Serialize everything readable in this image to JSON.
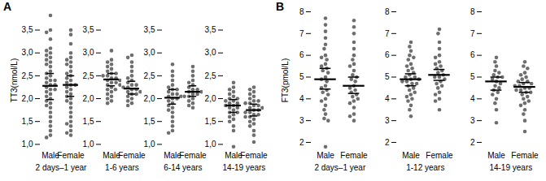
{
  "chart_data": [
    {
      "type": "scatter",
      "title": "A",
      "y_label": "TT3(nmol/L)",
      "marker": "circle",
      "color": "#6e6e6e",
      "categories": [
        "Male",
        "Female",
        "Male",
        "Female",
        "Male",
        "Female",
        "Male",
        "Female"
      ],
      "groups": [
        "2 days–1 year",
        "1-6 years",
        "6-14 years",
        "14-19 years"
      ],
      "ylim": [
        0.9,
        3.9
      ],
      "yticks": [
        {
          "value": 1,
          "label": "1,0"
        },
        {
          "value": 1.5,
          "label": "1,5"
        },
        {
          "value": 2,
          "label": "2,0"
        },
        {
          "value": 2.5,
          "label": "2,5"
        },
        {
          "value": 3,
          "label": "3,0"
        },
        {
          "value": 3.5,
          "label": "3,5"
        }
      ],
      "values": [
        [
          3.82,
          3.5,
          3.45,
          3.3,
          3.1,
          3.05,
          3.0,
          2.95,
          2.9,
          2.85,
          2.8,
          2.75,
          2.7,
          2.6,
          2.55,
          2.5,
          2.45,
          2.4,
          2.4,
          2.35,
          2.3,
          2.3,
          2.25,
          2.2,
          2.2,
          2.15,
          2.1,
          2.05,
          2.0,
          1.95,
          1.9,
          1.85,
          1.8,
          1.7,
          1.6,
          1.5,
          1.4,
          1.3,
          1.2,
          1.15
        ],
        [
          3.5,
          3.4,
          3.2,
          3.0,
          2.9,
          2.85,
          2.8,
          2.75,
          2.7,
          2.6,
          2.55,
          2.5,
          2.45,
          2.4,
          2.35,
          2.3,
          2.3,
          2.25,
          2.2,
          2.15,
          2.1,
          2.05,
          2.0,
          1.95,
          1.9,
          1.8,
          1.7,
          1.6,
          1.5,
          1.45,
          1.4,
          1.3,
          1.25,
          1.2
        ],
        [
          3.05,
          2.85,
          2.8,
          2.75,
          2.7,
          2.65,
          2.6,
          2.55,
          2.55,
          2.5,
          2.5,
          2.45,
          2.45,
          2.4,
          2.4,
          2.35,
          2.35,
          2.3,
          2.3,
          2.25,
          2.2,
          2.2,
          2.15,
          2.1,
          2.05,
          2.0,
          1.95,
          1.9
        ],
        [
          2.95,
          2.9,
          2.8,
          2.7,
          2.6,
          2.5,
          2.45,
          2.4,
          2.35,
          2.3,
          2.3,
          2.25,
          2.25,
          2.2,
          2.2,
          2.15,
          2.15,
          2.1,
          2.1,
          2.05,
          2.0,
          1.95,
          1.9,
          1.85
        ],
        [
          2.75,
          2.6,
          2.5,
          2.4,
          2.3,
          2.25,
          2.2,
          2.2,
          2.15,
          2.1,
          2.1,
          2.05,
          2.05,
          2.0,
          2.0,
          1.95,
          1.9,
          1.85,
          1.8,
          1.75,
          1.7,
          1.6,
          1.5,
          1.4,
          1.3,
          1.25
        ],
        [
          2.7,
          2.6,
          2.5,
          2.4,
          2.35,
          2.3,
          2.25,
          2.2,
          2.2,
          2.15,
          2.15,
          2.1,
          2.1,
          2.05,
          2.05,
          2.0,
          1.95,
          1.9,
          1.85,
          1.8
        ],
        [
          2.35,
          2.25,
          2.2,
          2.15,
          2.1,
          2.05,
          2.0,
          2.0,
          1.95,
          1.95,
          1.9,
          1.9,
          1.85,
          1.85,
          1.8,
          1.8,
          1.75,
          1.7,
          1.7,
          1.65,
          1.6,
          1.55,
          1.5,
          1.4,
          1.3,
          0.95
        ],
        [
          2.25,
          2.2,
          2.15,
          2.1,
          2.05,
          2.0,
          1.95,
          1.95,
          1.9,
          1.9,
          1.85,
          1.85,
          1.8,
          1.8,
          1.75,
          1.75,
          1.7,
          1.7,
          1.65,
          1.65,
          1.6,
          1.6,
          1.55,
          1.5,
          1.45,
          1.4,
          1.3,
          1.2,
          1.05
        ]
      ],
      "mean": [
        2.28,
        2.3,
        2.42,
        2.22,
        2.02,
        2.15,
        1.85,
        1.75
      ],
      "error_low": [
        1.98,
        2.05,
        2.28,
        2.1,
        1.88,
        2.05,
        1.7,
        1.62
      ],
      "error_high": [
        2.55,
        2.5,
        2.55,
        2.38,
        2.2,
        2.28,
        1.98,
        1.88
      ]
    },
    {
      "type": "scatter",
      "title": "B",
      "y_label": "FT3(pmol/L)",
      "marker": "circle",
      "color": "#6e6e6e",
      "categories": [
        "Male",
        "Female",
        "Male",
        "Female",
        "Male",
        "Female"
      ],
      "groups": [
        "2 days–1 year",
        "1-12 years",
        "14-19 years"
      ],
      "ylim": [
        1.7,
        8
      ],
      "yticks": [
        2,
        3,
        4,
        5,
        6,
        7,
        8
      ],
      "values": [
        [
          7.7,
          7.4,
          7.1,
          6.8,
          6.5,
          6.3,
          6.0,
          5.9,
          5.8,
          5.6,
          5.5,
          5.4,
          5.3,
          5.2,
          5.0,
          4.9,
          4.8,
          4.6,
          4.5,
          4.4,
          4.3,
          4.2,
          4.0,
          3.9,
          3.7,
          3.5,
          3.3,
          3.1,
          3.0,
          1.8
        ],
        [
          7.6,
          7.3,
          7.0,
          6.6,
          6.3,
          6.0,
          5.8,
          5.6,
          5.5,
          5.3,
          5.1,
          5.0,
          4.9,
          4.8,
          4.6,
          4.5,
          4.4,
          4.3,
          4.2,
          4.1,
          4.0,
          3.9,
          3.8,
          3.6,
          3.3,
          3.2,
          3.0
        ],
        [
          6.6,
          6.4,
          6.2,
          6.0,
          5.9,
          5.8,
          5.6,
          5.5,
          5.4,
          5.3,
          5.2,
          5.1,
          5.0,
          5.0,
          4.9,
          4.9,
          4.8,
          4.8,
          4.7,
          4.7,
          4.6,
          4.5,
          4.4,
          4.3,
          4.2,
          4.1,
          4.0,
          3.9,
          3.7,
          3.5,
          3.2
        ],
        [
          7.2,
          7.0,
          6.6,
          6.3,
          6.0,
          5.9,
          5.7,
          5.6,
          5.5,
          5.4,
          5.3,
          5.2,
          5.1,
          5.0,
          5.0,
          4.9,
          4.8,
          4.7,
          4.6,
          4.5,
          4.3,
          4.2,
          4.0,
          3.9,
          3.5
        ],
        [
          5.9,
          5.7,
          5.5,
          5.3,
          5.2,
          5.1,
          5.0,
          5.0,
          4.9,
          4.8,
          4.7,
          4.6,
          4.5,
          4.4,
          4.3,
          4.2,
          4.0,
          3.8,
          3.5,
          2.9
        ],
        [
          5.7,
          5.5,
          5.4,
          5.2,
          5.1,
          5.0,
          4.9,
          4.8,
          4.8,
          4.7,
          4.7,
          4.6,
          4.6,
          4.5,
          4.5,
          4.4,
          4.4,
          4.3,
          4.3,
          4.2,
          4.1,
          4.0,
          3.9,
          3.8,
          3.7,
          3.5,
          3.3,
          3.0,
          2.5
        ]
      ],
      "mean": [
        4.9,
        4.6,
        4.9,
        5.1,
        4.8,
        4.55
      ],
      "error_low": [
        4.45,
        4.25,
        4.6,
        4.85,
        4.4,
        4.3
      ],
      "error_high": [
        5.4,
        5.0,
        5.15,
        5.35,
        5.0,
        4.75
      ]
    }
  ]
}
